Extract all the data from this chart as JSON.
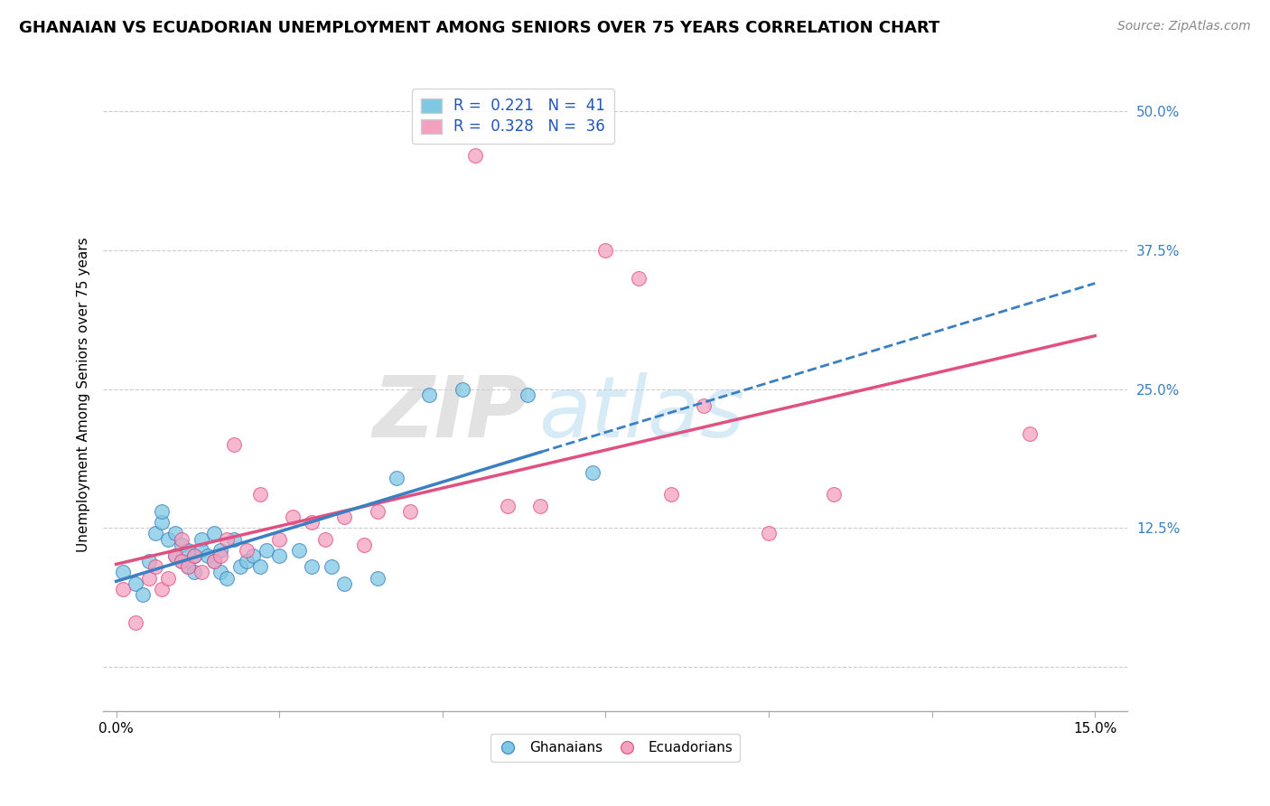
{
  "title": "GHANAIAN VS ECUADORIAN UNEMPLOYMENT AMONG SENIORS OVER 75 YEARS CORRELATION CHART",
  "source": "Source: ZipAtlas.com",
  "ylabel": "Unemployment Among Seniors over 75 years",
  "xlim": [
    -0.002,
    0.155
  ],
  "ylim": [
    -0.04,
    0.53
  ],
  "r_ghanaian": 0.221,
  "n_ghanaian": 41,
  "r_ecuadorian": 0.328,
  "n_ecuadorian": 36,
  "color_ghanaian": "#7ec8e3",
  "color_ecuadorian": "#f4a0c0",
  "color_trendline_ghanaian": "#3a7fc1",
  "color_trendline_ecuadorian": "#e05080",
  "watermark_text": "ZIPatlas",
  "ghanaian_x": [
    0.001,
    0.003,
    0.004,
    0.005,
    0.006,
    0.007,
    0.007,
    0.008,
    0.009,
    0.009,
    0.01,
    0.01,
    0.011,
    0.011,
    0.012,
    0.012,
    0.013,
    0.013,
    0.014,
    0.015,
    0.015,
    0.016,
    0.016,
    0.017,
    0.018,
    0.019,
    0.02,
    0.021,
    0.022,
    0.023,
    0.025,
    0.028,
    0.03,
    0.033,
    0.035,
    0.04,
    0.043,
    0.048,
    0.053,
    0.063,
    0.073
  ],
  "ghanaian_y": [
    0.085,
    0.075,
    0.065,
    0.095,
    0.12,
    0.13,
    0.14,
    0.115,
    0.1,
    0.12,
    0.095,
    0.11,
    0.09,
    0.105,
    0.085,
    0.1,
    0.115,
    0.105,
    0.1,
    0.095,
    0.12,
    0.105,
    0.085,
    0.08,
    0.115,
    0.09,
    0.095,
    0.1,
    0.09,
    0.105,
    0.1,
    0.105,
    0.09,
    0.09,
    0.075,
    0.08,
    0.17,
    0.245,
    0.25,
    0.245,
    0.175
  ],
  "ecuadorian_x": [
    0.001,
    0.003,
    0.005,
    0.006,
    0.007,
    0.008,
    0.009,
    0.01,
    0.01,
    0.011,
    0.012,
    0.013,
    0.015,
    0.016,
    0.017,
    0.018,
    0.02,
    0.022,
    0.025,
    0.027,
    0.03,
    0.032,
    0.035,
    0.038,
    0.04,
    0.045,
    0.055,
    0.06,
    0.065,
    0.075,
    0.08,
    0.085,
    0.09,
    0.1,
    0.11,
    0.14
  ],
  "ecuadorian_y": [
    0.07,
    0.04,
    0.08,
    0.09,
    0.07,
    0.08,
    0.1,
    0.095,
    0.115,
    0.09,
    0.1,
    0.085,
    0.095,
    0.1,
    0.115,
    0.2,
    0.105,
    0.155,
    0.115,
    0.135,
    0.13,
    0.115,
    0.135,
    0.11,
    0.14,
    0.14,
    0.46,
    0.145,
    0.145,
    0.375,
    0.35,
    0.155,
    0.235,
    0.12,
    0.155,
    0.21
  ],
  "ytick_vals": [
    0.0,
    0.125,
    0.25,
    0.375,
    0.5
  ],
  "ytick_labels": [
    "",
    "12.5%",
    "25.0%",
    "37.5%",
    "50.0%"
  ],
  "xtick_vals": [
    0.0,
    0.025,
    0.05,
    0.075,
    0.1,
    0.125,
    0.15
  ],
  "xtick_labels": [
    "0.0%",
    "",
    "",
    "",
    "",
    "",
    "15.0%"
  ]
}
